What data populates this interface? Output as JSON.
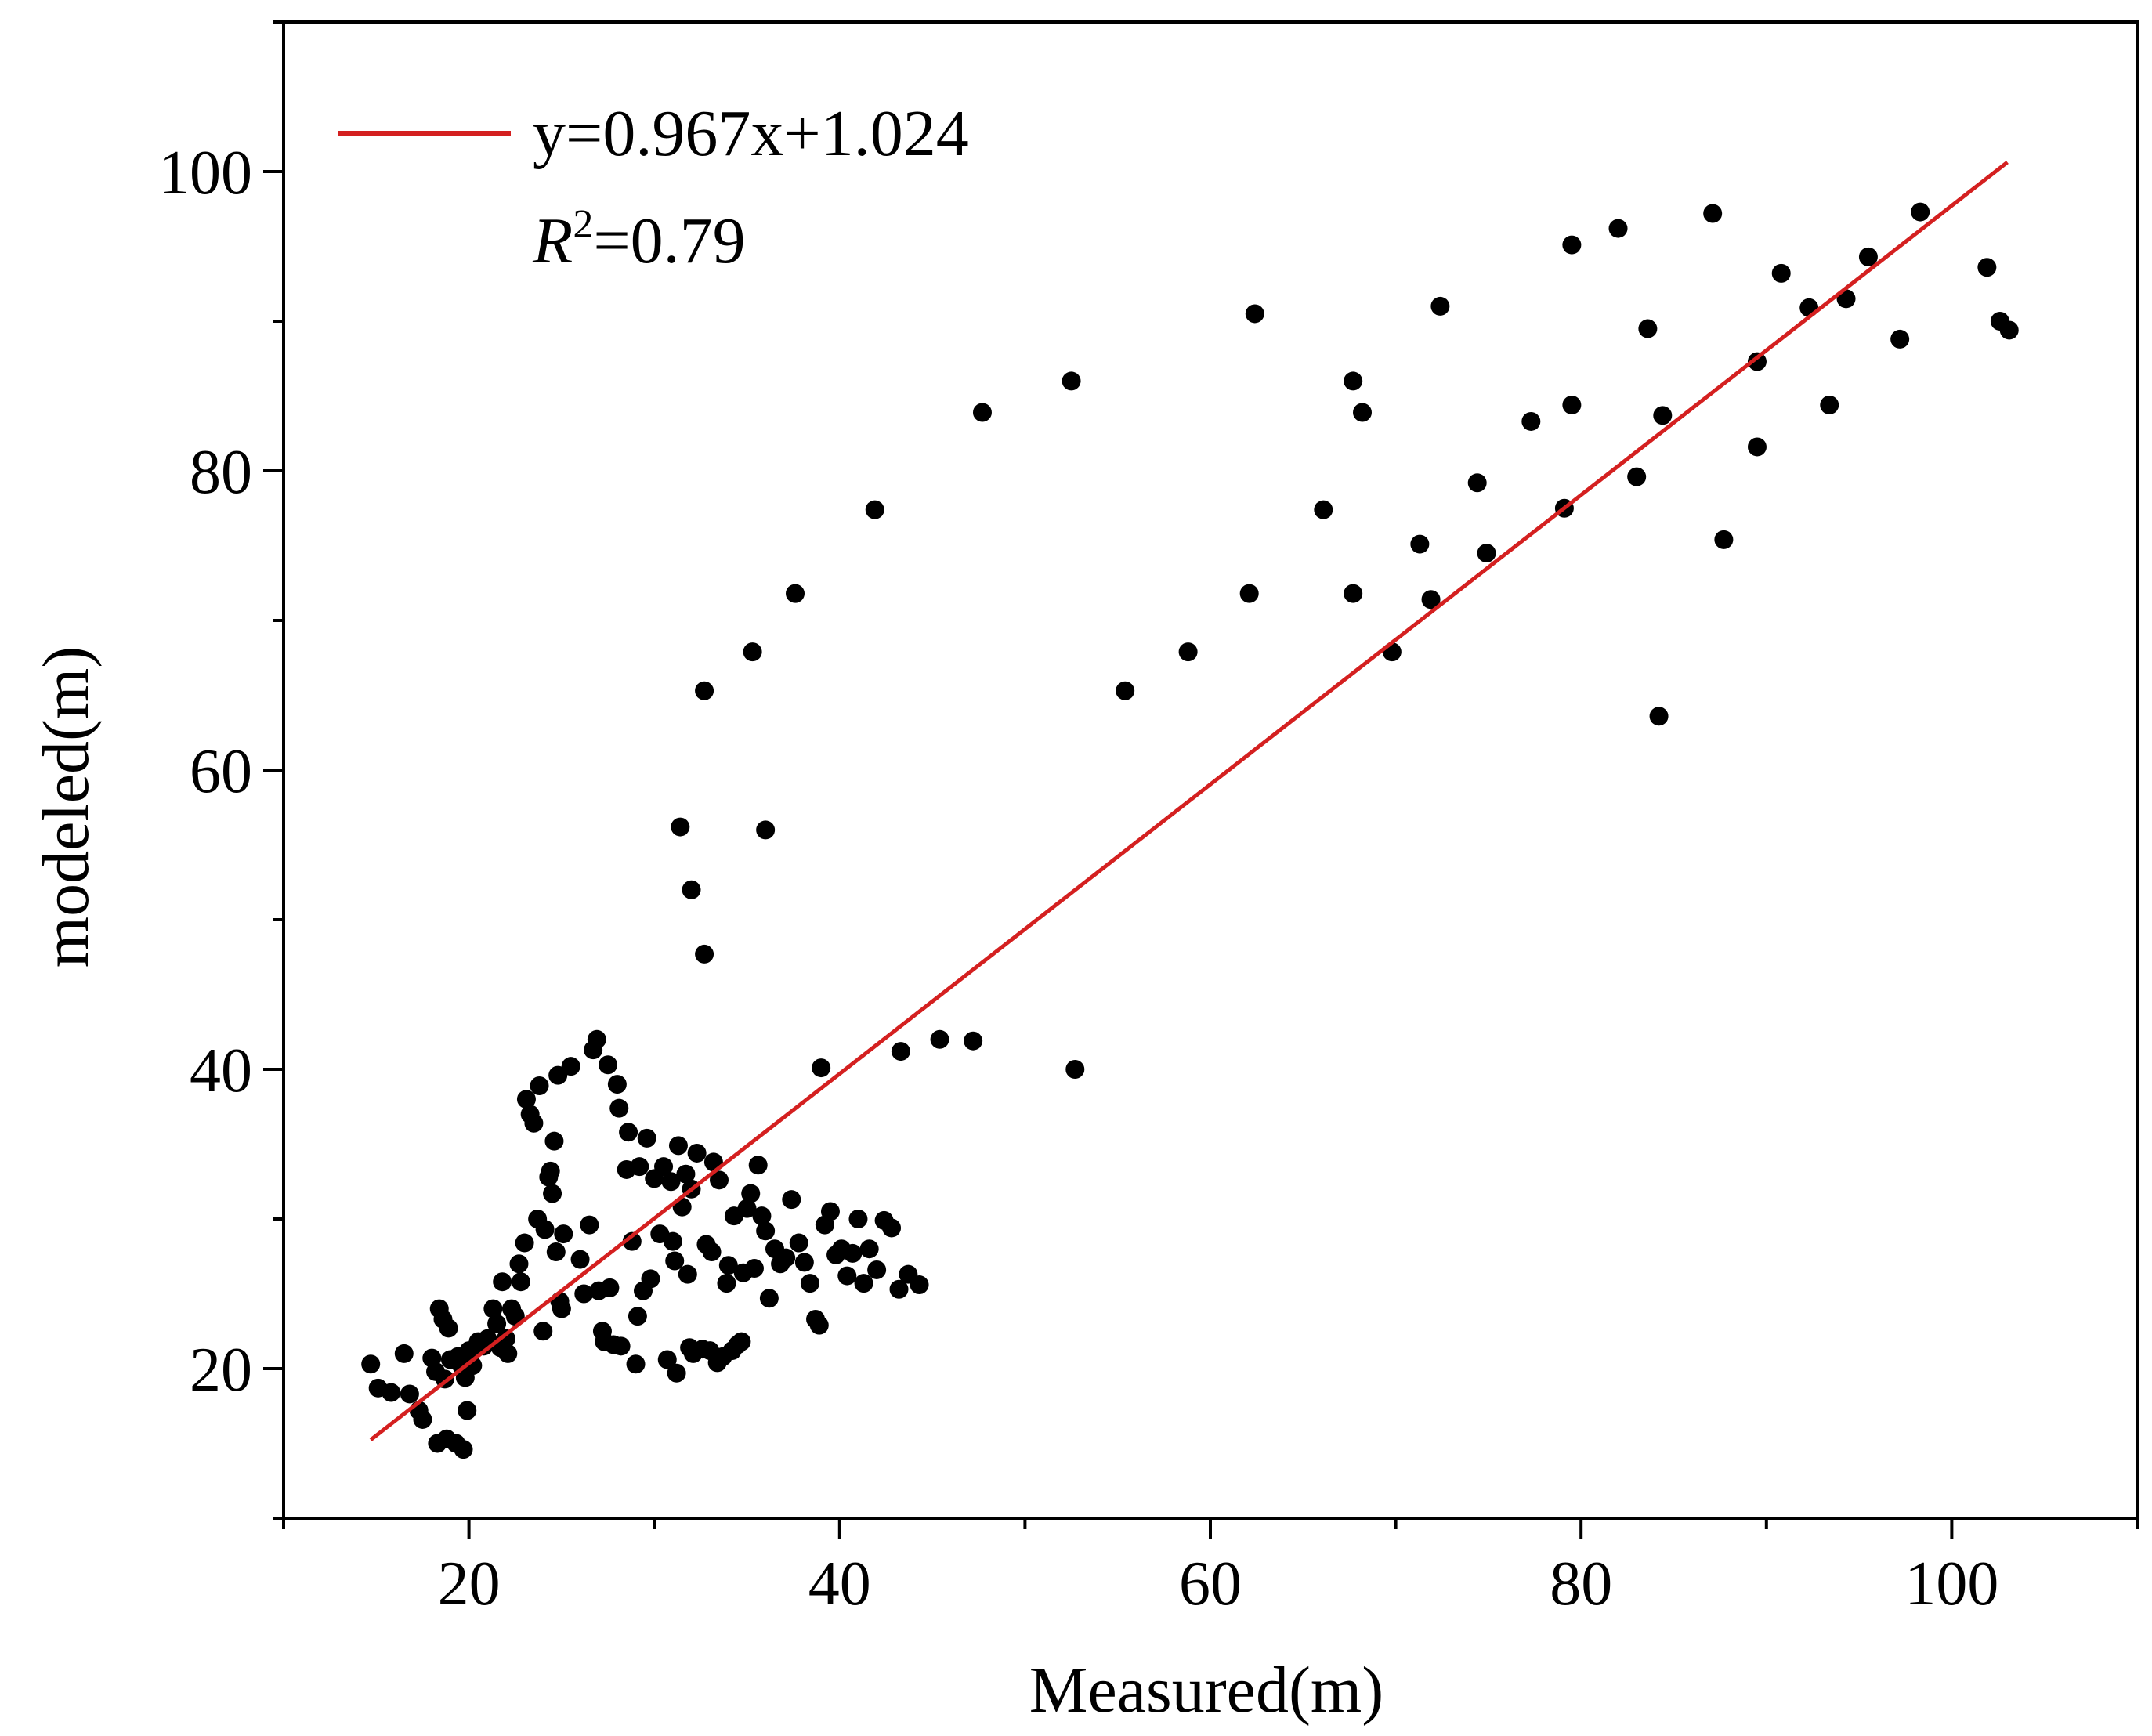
{
  "chart_data": {
    "type": "scatter",
    "title": "",
    "xlabel": "Measured(m)",
    "ylabel": "modeled(m)",
    "xlim": [
      10,
      110
    ],
    "ylim": [
      10,
      110
    ],
    "xticks": [
      20,
      40,
      60,
      80,
      100
    ],
    "yticks": [
      20,
      40,
      60,
      80,
      100
    ],
    "x_minor_step": 10,
    "y_minor_step": 10,
    "grid": false,
    "legend": {
      "position": "top-left",
      "fit_label": "y=0.967x+1.024",
      "r2_symbol": "R",
      "r2_exponent": "2",
      "r2_value": "=0.79"
    },
    "fit_line": {
      "slope": 0.967,
      "intercept": 1.024,
      "x_range": [
        14.7,
        103
      ],
      "color": "#d42020"
    },
    "series": [
      {
        "name": "points",
        "color": "#000000",
        "points": [
          [
            14.7,
            20.3
          ],
          [
            15.1,
            18.7
          ],
          [
            15.8,
            18.4
          ],
          [
            16.5,
            21.0
          ],
          [
            16.8,
            18.3
          ],
          [
            17.3,
            17.2
          ],
          [
            17.5,
            16.6
          ],
          [
            18.0,
            20.7
          ],
          [
            18.2,
            19.8
          ],
          [
            18.3,
            15.0
          ],
          [
            18.4,
            24.0
          ],
          [
            18.6,
            23.3
          ],
          [
            18.7,
            19.3
          ],
          [
            18.8,
            15.3
          ],
          [
            18.9,
            22.7
          ],
          [
            19.0,
            20.6
          ],
          [
            19.3,
            15.0
          ],
          [
            19.4,
            20.8
          ],
          [
            19.6,
            20.2
          ],
          [
            19.7,
            14.6
          ],
          [
            19.8,
            19.4
          ],
          [
            19.9,
            17.2
          ],
          [
            20.0,
            21.2
          ],
          [
            20.2,
            20.2
          ],
          [
            20.5,
            21.8
          ],
          [
            20.8,
            21.5
          ],
          [
            21.0,
            22.0
          ],
          [
            21.3,
            24.0
          ],
          [
            21.5,
            23.0
          ],
          [
            21.7,
            21.4
          ],
          [
            21.8,
            25.8
          ],
          [
            22.0,
            22.0
          ],
          [
            22.1,
            21.0
          ],
          [
            22.3,
            24.0
          ],
          [
            22.5,
            23.5
          ],
          [
            22.7,
            27.0
          ],
          [
            22.8,
            25.8
          ],
          [
            23.0,
            28.4
          ],
          [
            23.1,
            38.0
          ],
          [
            23.3,
            37.0
          ],
          [
            23.5,
            36.4
          ],
          [
            23.7,
            30.0
          ],
          [
            23.8,
            38.9
          ],
          [
            24.0,
            22.5
          ],
          [
            24.1,
            29.3
          ],
          [
            24.3,
            32.8
          ],
          [
            24.4,
            33.2
          ],
          [
            24.5,
            31.7
          ],
          [
            24.6,
            35.2
          ],
          [
            24.7,
            27.8
          ],
          [
            24.8,
            39.6
          ],
          [
            24.9,
            24.5
          ],
          [
            25.0,
            24.0
          ],
          [
            25.1,
            29.0
          ],
          [
            25.5,
            40.2
          ],
          [
            26.0,
            27.3
          ],
          [
            26.2,
            25.0
          ],
          [
            26.5,
            29.6
          ],
          [
            26.7,
            41.3
          ],
          [
            26.9,
            42.0
          ],
          [
            27.0,
            25.2
          ],
          [
            27.2,
            22.5
          ],
          [
            27.3,
            21.8
          ],
          [
            27.5,
            40.3
          ],
          [
            27.6,
            25.4
          ],
          [
            27.8,
            21.6
          ],
          [
            28.0,
            39.0
          ],
          [
            28.1,
            37.4
          ],
          [
            28.2,
            21.5
          ],
          [
            28.5,
            33.3
          ],
          [
            28.6,
            35.8
          ],
          [
            28.8,
            28.5
          ],
          [
            29.0,
            20.3
          ],
          [
            29.1,
            23.5
          ],
          [
            29.2,
            33.5
          ],
          [
            29.4,
            25.2
          ],
          [
            29.6,
            35.4
          ],
          [
            29.8,
            26.0
          ],
          [
            30.0,
            32.7
          ],
          [
            30.3,
            29.0
          ],
          [
            30.5,
            33.5
          ],
          [
            30.7,
            20.6
          ],
          [
            30.9,
            32.5
          ],
          [
            31.0,
            28.5
          ],
          [
            31.1,
            27.2
          ],
          [
            31.2,
            19.7
          ],
          [
            31.3,
            34.9
          ],
          [
            31.5,
            30.8
          ],
          [
            31.7,
            33.0
          ],
          [
            31.8,
            26.3
          ],
          [
            31.9,
            21.4
          ],
          [
            32.0,
            32.0
          ],
          [
            32.1,
            21.0
          ],
          [
            32.3,
            34.4
          ],
          [
            32.6,
            21.3
          ],
          [
            32.8,
            28.3
          ],
          [
            33.0,
            21.2
          ],
          [
            33.1,
            27.8
          ],
          [
            33.2,
            33.8
          ],
          [
            33.4,
            20.4
          ],
          [
            33.5,
            32.6
          ],
          [
            33.7,
            20.8
          ],
          [
            33.9,
            25.7
          ],
          [
            34.0,
            26.9
          ],
          [
            34.2,
            21.2
          ],
          [
            34.3,
            30.2
          ],
          [
            34.5,
            21.6
          ],
          [
            34.7,
            21.8
          ],
          [
            34.8,
            26.4
          ],
          [
            35.0,
            30.7
          ],
          [
            35.2,
            31.7
          ],
          [
            35.4,
            26.7
          ],
          [
            35.6,
            33.6
          ],
          [
            35.8,
            30.2
          ],
          [
            36.0,
            29.2
          ],
          [
            36.2,
            24.7
          ],
          [
            36.5,
            28.0
          ],
          [
            36.8,
            27.0
          ],
          [
            37.1,
            27.4
          ],
          [
            37.4,
            31.3
          ],
          [
            37.8,
            28.4
          ],
          [
            38.1,
            27.1
          ],
          [
            38.4,
            25.7
          ],
          [
            38.7,
            23.3
          ],
          [
            38.9,
            22.9
          ],
          [
            39.2,
            29.6
          ],
          [
            39.5,
            30.5
          ],
          [
            39.8,
            27.6
          ],
          [
            40.1,
            28.0
          ],
          [
            40.4,
            26.2
          ],
          [
            40.7,
            27.7
          ],
          [
            41.0,
            30.0
          ],
          [
            41.3,
            25.7
          ],
          [
            41.6,
            28.0
          ],
          [
            42.0,
            26.6
          ],
          [
            42.4,
            29.9
          ],
          [
            42.8,
            29.4
          ],
          [
            43.2,
            25.3
          ],
          [
            43.7,
            26.3
          ],
          [
            44.3,
            25.6
          ],
          [
            31.4,
            56.2
          ],
          [
            32.0,
            52.0
          ],
          [
            32.7,
            65.3
          ],
          [
            32.7,
            47.7
          ],
          [
            35.3,
            67.9
          ],
          [
            36.0,
            56.0
          ],
          [
            37.6,
            71.8
          ],
          [
            39.0,
            40.1
          ],
          [
            41.9,
            77.4
          ],
          [
            43.3,
            41.2
          ],
          [
            45.4,
            42.0
          ],
          [
            47.2,
            41.9
          ],
          [
            47.7,
            83.9
          ],
          [
            52.5,
            86.0
          ],
          [
            52.7,
            40.0
          ],
          [
            55.4,
            65.3
          ],
          [
            58.8,
            67.9
          ],
          [
            62.1,
            71.8
          ],
          [
            62.4,
            90.5
          ],
          [
            66.1,
            77.4
          ],
          [
            67.7,
            71.8
          ],
          [
            67.7,
            86.0
          ],
          [
            68.2,
            83.9
          ],
          [
            69.8,
            67.9
          ],
          [
            71.3,
            75.1
          ],
          [
            71.9,
            71.4
          ],
          [
            72.4,
            91.0
          ],
          [
            74.4,
            79.2
          ],
          [
            74.9,
            74.5
          ],
          [
            77.3,
            83.3
          ],
          [
            79.1,
            77.5
          ],
          [
            79.5,
            84.4
          ],
          [
            79.5,
            95.1
          ],
          [
            82.0,
            96.2
          ],
          [
            83.0,
            79.6
          ],
          [
            83.6,
            89.5
          ],
          [
            84.2,
            63.6
          ],
          [
            84.4,
            83.7
          ],
          [
            87.1,
            97.2
          ],
          [
            87.7,
            75.4
          ],
          [
            89.5,
            87.3
          ],
          [
            89.5,
            81.6
          ],
          [
            90.8,
            93.2
          ],
          [
            92.3,
            90.9
          ],
          [
            93.4,
            84.4
          ],
          [
            94.3,
            91.5
          ],
          [
            95.5,
            94.3
          ],
          [
            97.2,
            88.8
          ],
          [
            98.3,
            97.3
          ],
          [
            101.9,
            93.6
          ],
          [
            102.6,
            90.0
          ],
          [
            103.1,
            89.4
          ]
        ]
      }
    ]
  }
}
